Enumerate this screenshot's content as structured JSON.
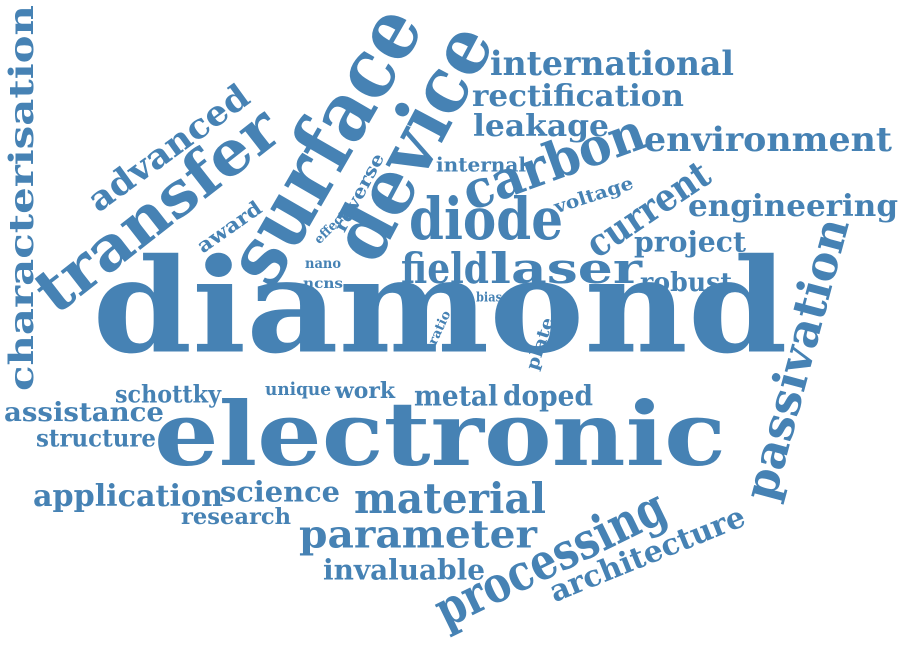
{
  "color": "#4682b4",
  "words": [
    "diamond",
    "electronic",
    "surface",
    "device",
    "transfer",
    "diode",
    "carbon",
    "passivation",
    "processing",
    "field",
    "laser",
    "current",
    "material",
    "parameter",
    "characterisation",
    "environment",
    "international",
    "rectification",
    "leakage",
    "engineering",
    "advanced",
    "architecture",
    "application",
    "science",
    "research",
    "invaluable",
    "assistance",
    "structure",
    "schottky",
    "metal",
    "doped",
    "unique",
    "work",
    "project",
    "robust",
    "voltage",
    "internal",
    "reverse",
    "award",
    "effect",
    "nano",
    "ncns",
    "bias",
    "ratio",
    "plate"
  ]
}
